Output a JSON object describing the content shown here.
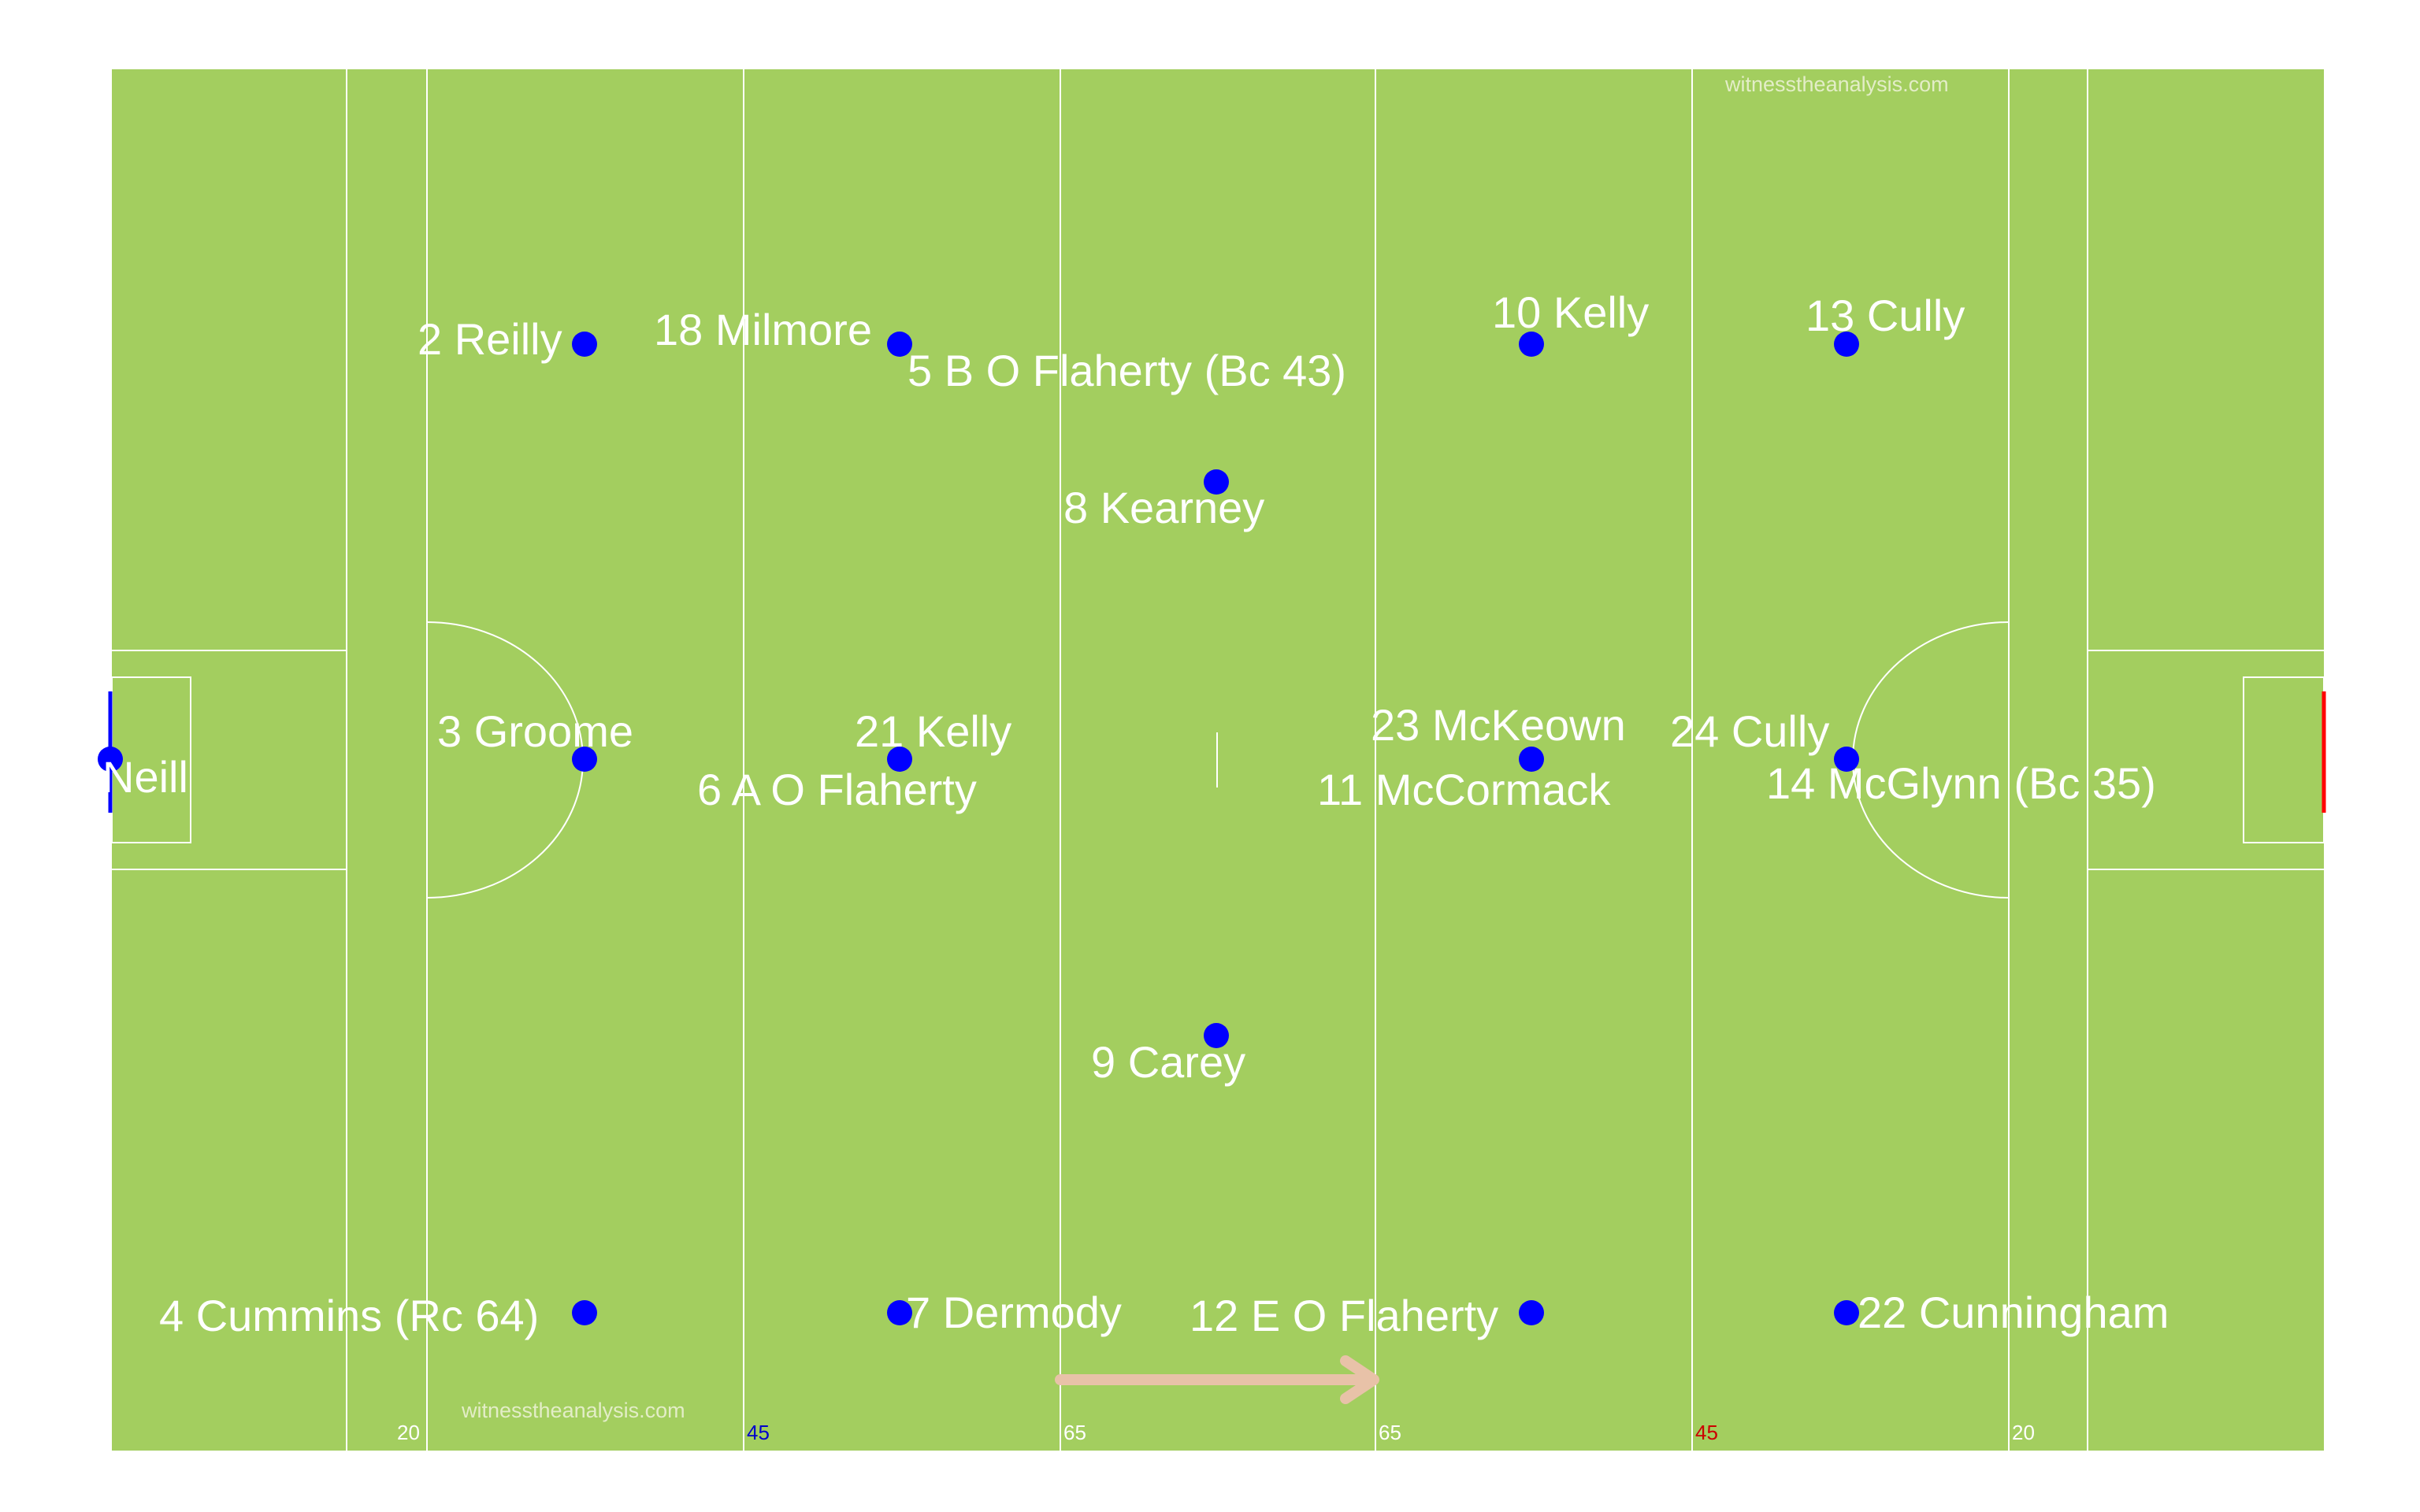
{
  "colors": {
    "grass": "#a3ce5f",
    "line": "#ffffff",
    "player_dot": "#0000ff",
    "player_label": "#ffffff",
    "own_goal": "#0000ff",
    "opp_goal": "#ff0000",
    "arrow": "#e8c2a8",
    "watermark": "#e3edc7"
  },
  "watermarks": {
    "top": "witnesstheanalysis.com",
    "bottom": "witnesstheanalysis.com"
  },
  "distance_markers": [
    {
      "id": "left-20",
      "label": "20",
      "color": "#ffffff"
    },
    {
      "id": "left-45",
      "label": "45",
      "color": "#0000cc"
    },
    {
      "id": "left-65",
      "label": "65",
      "color": "#ffffff"
    },
    {
      "id": "right-65",
      "label": "65",
      "color": "#ffffff"
    },
    {
      "id": "right-45",
      "label": "45",
      "color": "#cc0000"
    },
    {
      "id": "right-20",
      "label": "20",
      "color": "#ffffff"
    }
  ],
  "attack_direction": "right",
  "players": [
    {
      "label": "Neill"
    },
    {
      "label": "2 Reilly"
    },
    {
      "label": "3 Groome"
    },
    {
      "label": "4 Cummins (Rc 64)"
    },
    {
      "label": "18 Milmore"
    },
    {
      "label": "5 B O Flaherty (Bc 43)"
    },
    {
      "label": "21 Kelly"
    },
    {
      "label": "6 A O Flaherty"
    },
    {
      "label": "7 Dermody"
    },
    {
      "label": "8 Kearney"
    },
    {
      "label": "9 Carey"
    },
    {
      "label": "10 Kelly"
    },
    {
      "label": "23 McKeown"
    },
    {
      "label": "11 McCormack"
    },
    {
      "label": "12 E O Flaherty"
    },
    {
      "label": "13 Cully"
    },
    {
      "label": "24 Cully"
    },
    {
      "label": "14 McGlynn (Bc 35)"
    },
    {
      "label": "22 Cunningham"
    }
  ]
}
